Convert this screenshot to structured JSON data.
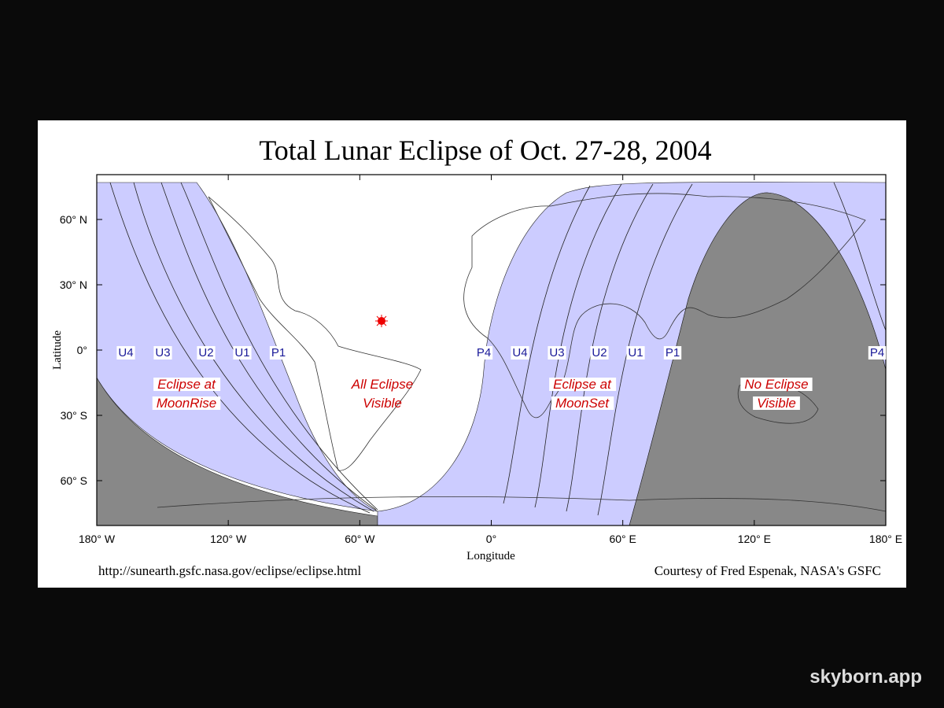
{
  "title": "Total Lunar Eclipse of Oct. 27-28, 2004",
  "y_axis": {
    "label": "Latitude",
    "ticks": [
      "60° N",
      "30° N",
      "0°",
      "30° S",
      "60° S"
    ]
  },
  "x_axis": {
    "label": "Longitude",
    "ticks": [
      "180° W",
      "120° W",
      "60° W",
      "0°",
      "60° E",
      "120° E",
      "180° E"
    ]
  },
  "contacts": [
    "U4",
    "U3",
    "U2",
    "U1",
    "P1",
    "P4",
    "U4",
    "U3",
    "U2",
    "U1",
    "P1",
    "P4"
  ],
  "regions": [
    [
      "Eclipse at",
      "MoonRise"
    ],
    [
      "All Eclipse",
      "Visible"
    ],
    [
      "Eclipse at",
      "MoonSet"
    ],
    [
      "No Eclipse",
      "Visible"
    ]
  ],
  "footer": {
    "url": "http://sunearth.gsfc.nasa.gov/eclipse/eclipse.html",
    "credit": "Courtesy of Fred Espenak, NASA's GSFC"
  },
  "watermark": "skyborn.app"
}
